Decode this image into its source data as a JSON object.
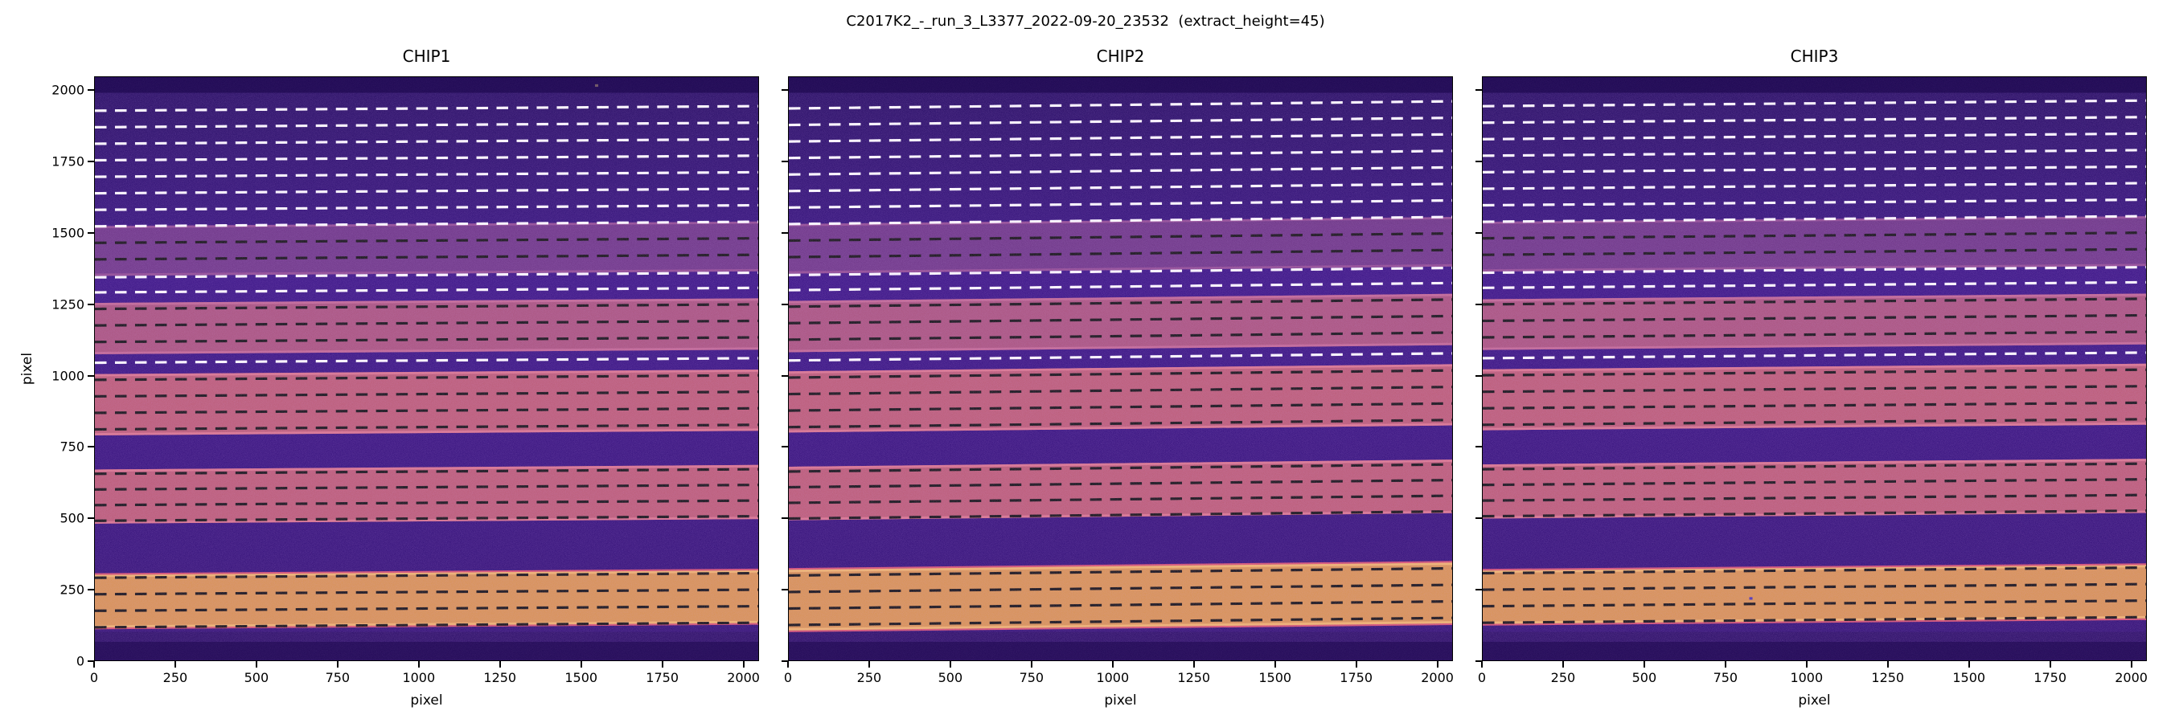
{
  "figure": {
    "title": "C2017K2_-_run_3_L3377_2022-09-20_23532  (extract_height=45)"
  },
  "axes": {
    "xlabel": "pixel",
    "ylabel": "pixel",
    "xticks": [
      "0",
      "250",
      "500",
      "750",
      "1000",
      "1250",
      "1500",
      "1750",
      "2000"
    ],
    "yticks": [
      "0",
      "250",
      "500",
      "750",
      "1000",
      "1250",
      "1500",
      "1750",
      "2000"
    ],
    "xlim": [
      0,
      2048
    ],
    "ylim": [
      0,
      2050
    ]
  },
  "chart_data": {
    "type": "heatmap",
    "description": "Three echelle spectrograph CCD frames with dashed extraction-aperture boundary lines over bright spectral-order bands",
    "extract_height": 45,
    "x_range": [
      0,
      2048
    ],
    "y_range": [
      0,
      2048
    ],
    "colors": {
      "bg_top": "#20085c",
      "bg_mid": "#33107f",
      "bg_bot": "#250960",
      "mid_overlay": "#3a1286",
      "dark_strip": "#190549",
      "line_white": "#ffffff",
      "line_black": "#101010",
      "band_orange": "#d8924e",
      "band_orange_edge": "#f0b468",
      "band_pink": "#bb5a72",
      "band_pink_edge": "#d9748a",
      "band_pink2": "#a8517a",
      "band_pink2_edge": "#c06690",
      "band_faint": "#7e3f86",
      "band_faint_edge": "#8f4a90",
      "fringe": "#d4506e"
    },
    "panels": [
      {
        "title": "CHIP1",
        "tilt_deg": -0.45,
        "bands": [
          [
            115,
            300,
            "orange"
          ],
          [
            480,
            670,
            "pink"
          ],
          [
            790,
            1005,
            "pink"
          ],
          [
            1075,
            1255,
            "pink2"
          ],
          [
            1350,
            1525,
            "faint"
          ]
        ],
        "lines": [
          [
            1930,
            "w"
          ],
          [
            1872,
            "w"
          ],
          [
            1814,
            "w"
          ],
          [
            1756,
            "w"
          ],
          [
            1698,
            "w"
          ],
          [
            1640,
            "w"
          ],
          [
            1582,
            "w"
          ],
          [
            1524,
            "w"
          ],
          [
            1466,
            "k"
          ],
          [
            1408,
            "k"
          ],
          [
            1345,
            "w"
          ],
          [
            1292,
            "w"
          ],
          [
            1234,
            "k"
          ],
          [
            1176,
            "k"
          ],
          [
            1118,
            "k"
          ],
          [
            1045,
            "w"
          ],
          [
            985,
            "k"
          ],
          [
            927,
            "k"
          ],
          [
            869,
            "k"
          ],
          [
            811,
            "k"
          ],
          [
            655,
            "k"
          ],
          [
            600,
            "k"
          ],
          [
            545,
            "k"
          ],
          [
            490,
            "k"
          ],
          [
            290,
            "k"
          ],
          [
            232,
            "k"
          ],
          [
            174,
            "k"
          ],
          [
            116,
            "k"
          ]
        ],
        "specks": [
          [
            1544,
            2023,
            "#ffe08a"
          ]
        ]
      },
      {
        "title": "CHIP2",
        "tilt_deg": -0.7,
        "bands": [
          [
            105,
            318,
            "orange"
          ],
          [
            492,
            680,
            "pink"
          ],
          [
            800,
            1015,
            "pink"
          ],
          [
            1082,
            1262,
            "pink2"
          ],
          [
            1358,
            1532,
            "faint"
          ]
        ],
        "lines": [
          [
            1938,
            "w"
          ],
          [
            1880,
            "w"
          ],
          [
            1822,
            "w"
          ],
          [
            1764,
            "w"
          ],
          [
            1706,
            "w"
          ],
          [
            1648,
            "w"
          ],
          [
            1590,
            "w"
          ],
          [
            1532,
            "w"
          ],
          [
            1474,
            "k"
          ],
          [
            1416,
            "k"
          ],
          [
            1353,
            "w"
          ],
          [
            1300,
            "w"
          ],
          [
            1242,
            "k"
          ],
          [
            1184,
            "k"
          ],
          [
            1126,
            "k"
          ],
          [
            1053,
            "w"
          ],
          [
            993,
            "k"
          ],
          [
            935,
            "k"
          ],
          [
            877,
            "k"
          ],
          [
            819,
            "k"
          ],
          [
            663,
            "k"
          ],
          [
            608,
            "k"
          ],
          [
            553,
            "k"
          ],
          [
            498,
            "k"
          ],
          [
            298,
            "k"
          ],
          [
            240,
            "k"
          ],
          [
            182,
            "k"
          ],
          [
            124,
            "k"
          ]
        ],
        "specks": []
      },
      {
        "title": "CHIP3",
        "tilt_deg": -0.55,
        "bands": [
          [
            128,
            315,
            "orange"
          ],
          [
            498,
            688,
            "pink"
          ],
          [
            808,
            1022,
            "pink"
          ],
          [
            1090,
            1268,
            "pink2"
          ],
          [
            1365,
            1540,
            "faint"
          ]
        ],
        "lines": [
          [
            1946,
            "w"
          ],
          [
            1888,
            "w"
          ],
          [
            1830,
            "w"
          ],
          [
            1772,
            "w"
          ],
          [
            1714,
            "w"
          ],
          [
            1656,
            "w"
          ],
          [
            1598,
            "w"
          ],
          [
            1540,
            "w"
          ],
          [
            1482,
            "k"
          ],
          [
            1424,
            "k"
          ],
          [
            1361,
            "w"
          ],
          [
            1308,
            "w"
          ],
          [
            1250,
            "k"
          ],
          [
            1192,
            "k"
          ],
          [
            1134,
            "k"
          ],
          [
            1061,
            "w"
          ],
          [
            1001,
            "k"
          ],
          [
            943,
            "k"
          ],
          [
            885,
            "k"
          ],
          [
            827,
            "k"
          ],
          [
            671,
            "k"
          ],
          [
            616,
            "k"
          ],
          [
            561,
            "k"
          ],
          [
            506,
            "k"
          ],
          [
            306,
            "k"
          ],
          [
            248,
            "k"
          ],
          [
            190,
            "k"
          ],
          [
            132,
            "k"
          ]
        ],
        "specks": [
          [
            823,
            222,
            "#4531b5"
          ]
        ]
      }
    ]
  }
}
